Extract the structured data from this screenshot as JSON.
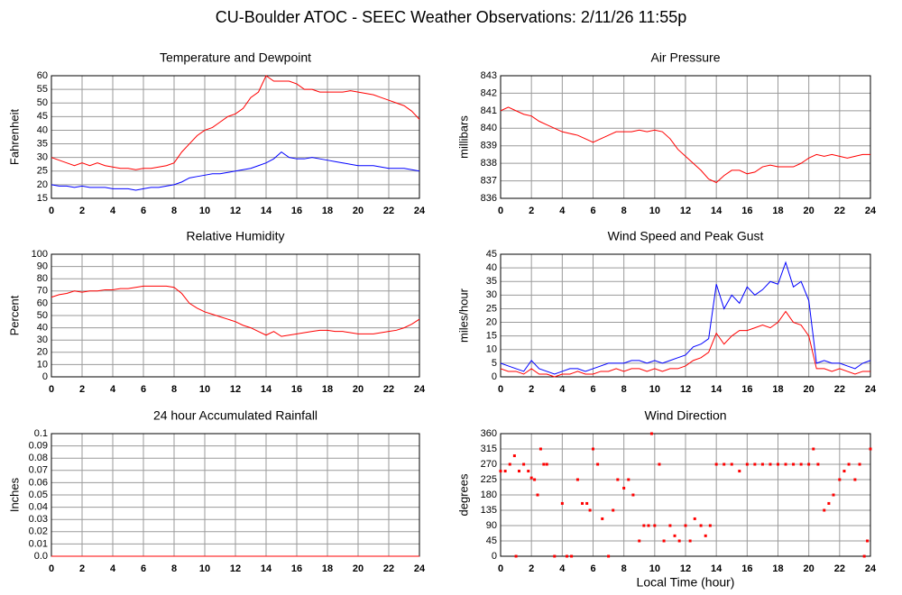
{
  "title": "CU-Boulder ATOC - SEEC Weather Observations: 2/11/26 11:55p",
  "chart_data": [
    {
      "type": "line",
      "title": "Temperature and Dewpoint",
      "ylabel": "Fahrenheit",
      "x": [
        0,
        0.5,
        1,
        1.5,
        2,
        2.5,
        3,
        3.5,
        4,
        4.5,
        5,
        5.5,
        6,
        6.5,
        7,
        7.5,
        8,
        8.5,
        9,
        9.5,
        10,
        10.5,
        11,
        11.5,
        12,
        12.5,
        13,
        13.5,
        14,
        14.5,
        15,
        15.5,
        16,
        16.5,
        17,
        17.5,
        18,
        18.5,
        19,
        19.5,
        20,
        20.5,
        21,
        21.5,
        22,
        22.5,
        23,
        23.5,
        24
      ],
      "series": [
        {
          "color": "#ff0000",
          "values": [
            30,
            29,
            28,
            27,
            28,
            27,
            28,
            27,
            26.5,
            26,
            26,
            25.5,
            26,
            26,
            26.5,
            27,
            28,
            32,
            35,
            38,
            40,
            41,
            43,
            45,
            46,
            48,
            52,
            54,
            60,
            58,
            58,
            58,
            57,
            55,
            55,
            54,
            54,
            54,
            54,
            54.5,
            54,
            53.5,
            53,
            52,
            51,
            50,
            49,
            47,
            44
          ]
        },
        {
          "color": "#0000ff",
          "values": [
            20,
            19.5,
            19.5,
            19,
            19.5,
            19,
            19,
            19,
            18.5,
            18.5,
            18.5,
            18,
            18.5,
            19,
            19,
            19.5,
            20,
            21,
            22.5,
            23,
            23.5,
            24,
            24,
            24.5,
            25,
            25.5,
            26,
            27,
            28,
            29.5,
            32,
            30,
            29.5,
            29.5,
            30,
            29.5,
            29,
            28.5,
            28,
            27.5,
            27,
            27,
            27,
            26.5,
            26,
            26,
            26,
            25.5,
            25
          ]
        }
      ],
      "xlim": [
        0,
        24
      ],
      "xticks": [
        0,
        2,
        4,
        6,
        8,
        10,
        12,
        14,
        16,
        18,
        20,
        22,
        24
      ],
      "ylim": [
        15,
        60
      ],
      "yticks": [
        15,
        20,
        25,
        30,
        35,
        40,
        45,
        50,
        55,
        60
      ],
      "grid": true
    },
    {
      "type": "line",
      "title": "Air Pressure",
      "ylabel": "millibars",
      "x": [
        0,
        0.5,
        1,
        1.5,
        2,
        2.5,
        3,
        3.5,
        4,
        4.5,
        5,
        5.5,
        6,
        6.5,
        7,
        7.5,
        8,
        8.5,
        9,
        9.5,
        10,
        10.5,
        11,
        11.5,
        12,
        12.5,
        13,
        13.5,
        14,
        14.5,
        15,
        15.5,
        16,
        16.5,
        17,
        17.5,
        18,
        18.5,
        19,
        19.5,
        20,
        20.5,
        21,
        21.5,
        22,
        22.5,
        23,
        23.5,
        24
      ],
      "series": [
        {
          "color": "#ff0000",
          "values": [
            841,
            841.2,
            841,
            840.8,
            840.7,
            840.4,
            840.2,
            840,
            839.8,
            839.7,
            839.6,
            839.4,
            839.2,
            839.4,
            839.6,
            839.8,
            839.8,
            839.8,
            839.9,
            839.8,
            839.9,
            839.8,
            839.4,
            838.8,
            838.4,
            838,
            837.6,
            837.1,
            836.9,
            837.3,
            837.6,
            837.6,
            837.4,
            837.5,
            837.8,
            837.9,
            837.8,
            837.8,
            837.8,
            838,
            838.3,
            838.5,
            838.4,
            838.5,
            838.4,
            838.3,
            838.4,
            838.5,
            838.5
          ]
        }
      ],
      "xlim": [
        0,
        24
      ],
      "xticks": [
        0,
        2,
        4,
        6,
        8,
        10,
        12,
        14,
        16,
        18,
        20,
        22,
        24
      ],
      "ylim": [
        836,
        843
      ],
      "yticks": [
        836,
        837,
        838,
        839,
        840,
        841,
        842,
        843
      ],
      "grid": true
    },
    {
      "type": "line",
      "title": "Relative Humidity",
      "ylabel": "Percent",
      "x": [
        0,
        0.5,
        1,
        1.5,
        2,
        2.5,
        3,
        3.5,
        4,
        4.5,
        5,
        5.5,
        6,
        6.5,
        7,
        7.5,
        8,
        8.5,
        9,
        9.5,
        10,
        10.5,
        11,
        11.5,
        12,
        12.5,
        13,
        13.5,
        14,
        14.5,
        15,
        15.5,
        16,
        16.5,
        17,
        17.5,
        18,
        18.5,
        19,
        19.5,
        20,
        20.5,
        21,
        21.5,
        22,
        22.5,
        23,
        23.5,
        24
      ],
      "series": [
        {
          "color": "#ff0000",
          "values": [
            65,
            67,
            68,
            70,
            69,
            70,
            70,
            71,
            71,
            72,
            72,
            73,
            74,
            74,
            74,
            74,
            73,
            68,
            60,
            56,
            53,
            51,
            49,
            47,
            45,
            42,
            40,
            37,
            34,
            37,
            33,
            34,
            35,
            36,
            37,
            38,
            38,
            37,
            37,
            36,
            35,
            35,
            35,
            36,
            37,
            38,
            40,
            43,
            47
          ]
        }
      ],
      "xlim": [
        0,
        24
      ],
      "xticks": [
        0,
        2,
        4,
        6,
        8,
        10,
        12,
        14,
        16,
        18,
        20,
        22,
        24
      ],
      "ylim": [
        0,
        100
      ],
      "yticks": [
        0,
        10,
        20,
        30,
        40,
        50,
        60,
        70,
        80,
        90,
        100
      ],
      "grid": true
    },
    {
      "type": "line",
      "title": "Wind Speed and Peak Gust",
      "ylabel": "miles/hour",
      "x": [
        0,
        0.5,
        1,
        1.5,
        2,
        2.5,
        3,
        3.5,
        4,
        4.5,
        5,
        5.5,
        6,
        6.5,
        7,
        7.5,
        8,
        8.5,
        9,
        9.5,
        10,
        10.5,
        11,
        11.5,
        12,
        12.5,
        13,
        13.5,
        14,
        14.5,
        15,
        15.5,
        16,
        16.5,
        17,
        17.5,
        18,
        18.5,
        19,
        19.5,
        20,
        20.5,
        21,
        21.5,
        22,
        22.5,
        23,
        23.5,
        24
      ],
      "series": [
        {
          "color": "#ff0000",
          "values": [
            3,
            2,
            2,
            1,
            3,
            1,
            1,
            0,
            1,
            1,
            2,
            1,
            1,
            2,
            2,
            3,
            2,
            3,
            3,
            2,
            3,
            2,
            3,
            3,
            4,
            6,
            7,
            9,
            16,
            12,
            15,
            17,
            17,
            18,
            19,
            18,
            20,
            24,
            20,
            19,
            15,
            3,
            3,
            2,
            3,
            2,
            1,
            2,
            2
          ]
        },
        {
          "color": "#0000ff",
          "values": [
            5,
            4,
            3,
            2,
            6,
            3,
            2,
            1,
            2,
            3,
            3,
            2,
            3,
            4,
            5,
            5,
            5,
            6,
            6,
            5,
            6,
            5,
            6,
            7,
            8,
            11,
            12,
            14,
            34,
            25,
            30,
            27,
            33,
            30,
            32,
            35,
            34,
            42,
            33,
            35,
            28,
            5,
            6,
            5,
            5,
            4,
            3,
            5,
            6
          ]
        }
      ],
      "xlim": [
        0,
        24
      ],
      "xticks": [
        0,
        2,
        4,
        6,
        8,
        10,
        12,
        14,
        16,
        18,
        20,
        22,
        24
      ],
      "ylim": [
        0,
        45
      ],
      "yticks": [
        0,
        5,
        10,
        15,
        20,
        25,
        30,
        35,
        40,
        45
      ],
      "grid": true
    },
    {
      "type": "line",
      "title": "24 hour Accumulated Rainfall",
      "ylabel": "Inches",
      "x": [
        0,
        24
      ],
      "series": [
        {
          "color": "#ff0000",
          "values": [
            0,
            0
          ]
        }
      ],
      "xlim": [
        0,
        24
      ],
      "xticks": [
        0,
        2,
        4,
        6,
        8,
        10,
        12,
        14,
        16,
        18,
        20,
        22,
        24
      ],
      "ylim": [
        0,
        0.1
      ],
      "yticks": [
        {
          "value": 0,
          "label": "0.0"
        },
        0.01,
        0.02,
        0.03,
        0.04,
        0.05,
        0.06,
        0.07,
        0.08,
        0.09,
        0.1
      ],
      "grid": true
    },
    {
      "type": "scatter",
      "title": "Wind Direction",
      "ylabel": "degrees",
      "xlabel": "Local Time (hour)",
      "x": [
        0,
        0.3,
        0.6,
        0.9,
        1.0,
        1.2,
        1.5,
        1.8,
        2.0,
        2.2,
        2.4,
        2.6,
        2.8,
        3.0,
        3.5,
        4.0,
        4.3,
        4.6,
        5.0,
        5.3,
        5.6,
        5.8,
        6.0,
        6.3,
        6.6,
        7.0,
        7.3,
        7.6,
        8.0,
        8.3,
        8.6,
        9.0,
        9.3,
        9.6,
        9.8,
        10.0,
        10.3,
        10.6,
        11.0,
        11.3,
        11.6,
        12.0,
        12.3,
        12.6,
        13.0,
        13.3,
        13.6,
        14.0,
        14.5,
        15.0,
        15.5,
        16.0,
        16.5,
        17,
        17.5,
        18,
        18.5,
        19,
        19.5,
        20,
        20.3,
        20.6,
        21.0,
        21.3,
        21.6,
        22.0,
        22.3,
        22.6,
        23.0,
        23.3,
        23.6,
        23.8,
        24.0
      ],
      "series": [
        {
          "color": "#ff0000",
          "values": [
            250,
            250,
            270,
            295,
            0,
            250,
            270,
            250,
            230,
            225,
            180,
            315,
            270,
            270,
            0,
            155,
            0,
            0,
            225,
            155,
            155,
            135,
            315,
            270,
            110,
            0,
            135,
            225,
            200,
            225,
            180,
            45,
            90,
            90,
            360,
            90,
            270,
            45,
            90,
            60,
            45,
            90,
            45,
            110,
            90,
            60,
            90,
            270,
            270,
            270,
            250,
            270,
            270,
            270,
            270,
            270,
            270,
            270,
            270,
            270,
            315,
            270,
            135,
            155,
            180,
            225,
            250,
            270,
            225,
            270,
            0,
            45,
            315
          ]
        }
      ],
      "xlim": [
        0,
        24
      ],
      "xticks": [
        0,
        2,
        4,
        6,
        8,
        10,
        12,
        14,
        16,
        18,
        20,
        22,
        24
      ],
      "ylim": [
        0,
        360
      ],
      "yticks": [
        0,
        45,
        90,
        135,
        180,
        225,
        270,
        315,
        360
      ],
      "grid": true
    }
  ]
}
